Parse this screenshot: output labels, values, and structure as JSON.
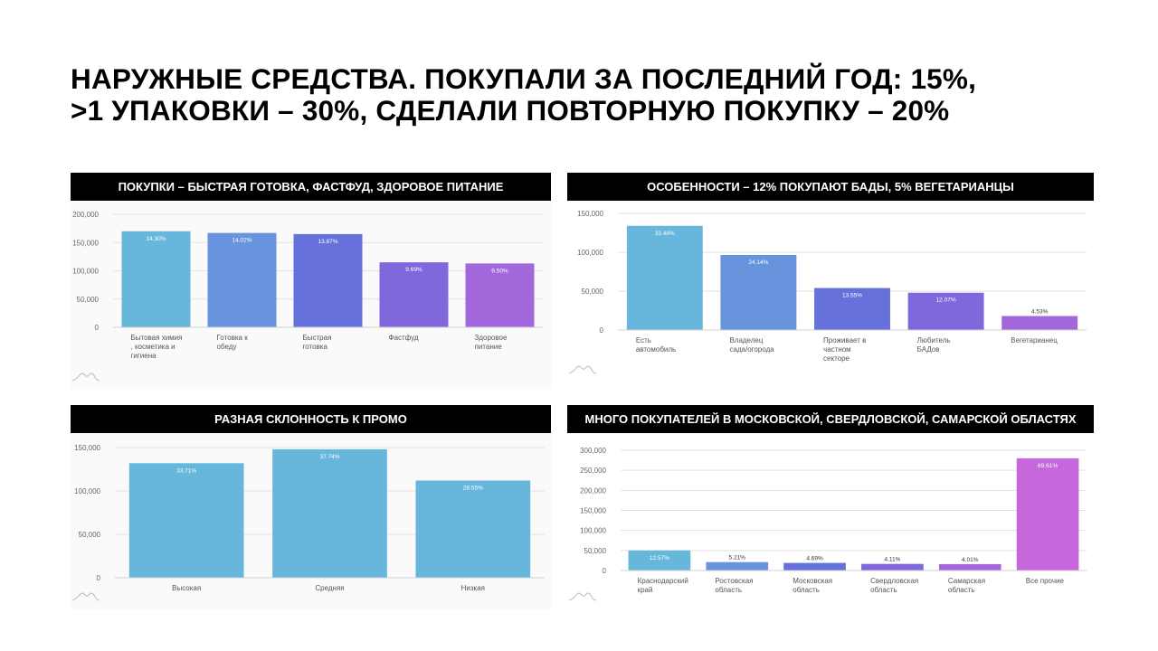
{
  "page": {
    "title_line1": "НАРУЖНЫЕ СРЕДСТВА. ПОКУПАЛИ ЗА ПОСЛЕДНИЙ ГОД: 15%,",
    "title_line2": ">1 УПАКОВКИ – 30%, СДЕЛАЛИ ПОВТОРНУЮ ПОКУПКУ – 20%"
  },
  "chart_data": [
    {
      "type": "bar",
      "title": "ПОКУПКИ – БЫСТРАЯ ГОТОВКА, ФАСТФУД, ЗДОРОВОЕ ПИТАНИЕ",
      "categories": [
        [
          "Бытовая химия",
          ", косметика и",
          "гигиена"
        ],
        [
          "Готовка к",
          "обеду"
        ],
        [
          "Быстрая",
          "готовка"
        ],
        [
          "Фастфуд"
        ],
        [
          "Здоровое",
          "питание"
        ]
      ],
      "values": [
        170000,
        167000,
        165000,
        115000,
        113000
      ],
      "data_labels": [
        "14.30%",
        "14.02%",
        "13.87%",
        "9.69%",
        "9.50%"
      ],
      "colors": [
        "#67b7dc",
        "#6794dc",
        "#6771dc",
        "#8067dc",
        "#a367dc"
      ],
      "yticks": [
        "0",
        "50,000",
        "100,000",
        "150,000",
        "200,000"
      ],
      "ylim": [
        0,
        200000
      ],
      "grid": true
    },
    {
      "type": "bar",
      "title": "ОСОБЕННОСТИ – 12% ПОКУПАЮТ БАДЫ, 5% ВЕГЕТАРИАНЦЫ",
      "categories": [
        [
          "Есть",
          "автомобиль"
        ],
        [
          "Владелец",
          "сада/огорода"
        ],
        [
          "Проживает в",
          "частном",
          "секторе"
        ],
        [
          "Любитель",
          "БАДов"
        ],
        [
          "Вегетарианец"
        ]
      ],
      "values": [
        134000,
        96500,
        54000,
        48000,
        18000
      ],
      "data_labels": [
        "33.48%",
        "24.14%",
        "13.55%",
        "12.07%",
        "4.53%"
      ],
      "colors": [
        "#67b7dc",
        "#6794dc",
        "#6771dc",
        "#8067dc",
        "#a367dc"
      ],
      "yticks": [
        "0",
        "50,000",
        "100,000",
        "150,000"
      ],
      "ylim": [
        0,
        150000
      ],
      "grid": true
    },
    {
      "type": "bar",
      "title": "РАЗНАЯ СКЛОННОСТЬ К ПРОМО",
      "categories": [
        [
          "Высокая"
        ],
        [
          "Средняя"
        ],
        [
          "Низкая"
        ]
      ],
      "values": [
        132000,
        148000,
        112000
      ],
      "data_labels": [
        "33.71%",
        "37.74%",
        "28.55%"
      ],
      "colors": [
        "#67b7dc",
        "#67b7dc",
        "#67b7dc"
      ],
      "yticks": [
        "0",
        "50,000",
        "100,000",
        "150,000"
      ],
      "ylim": [
        0,
        150000
      ],
      "grid": true
    },
    {
      "type": "bar",
      "title": "МНОГО ПОКУПАТЕЛЕЙ В МОСКОВСКОЙ, СВЕРДЛОВСКОЙ, САМАРСКОЙ ОБЛАСТЯХ",
      "categories": [
        [
          "Краснодарский",
          "край"
        ],
        [
          "Ростовская",
          "область"
        ],
        [
          "Московская",
          "область"
        ],
        [
          "Свердловская",
          "область"
        ],
        [
          "Самарская",
          "область"
        ],
        [
          "Все прочие"
        ]
      ],
      "values": [
        50000,
        21000,
        19000,
        16500,
        16000,
        280000
      ],
      "data_labels": [
        "12.57%",
        "5.21%",
        "4.69%",
        "4.11%",
        "4.01%",
        "69.61%"
      ],
      "colors": [
        "#67b7dc",
        "#6794dc",
        "#6771dc",
        "#8067dc",
        "#a367dc",
        "#c767dc"
      ],
      "yticks": [
        "0",
        "50,000",
        "100,000",
        "150,000",
        "200,000",
        "250,000",
        "300,000"
      ],
      "ylim": [
        0,
        300000
      ],
      "grid": true
    }
  ]
}
